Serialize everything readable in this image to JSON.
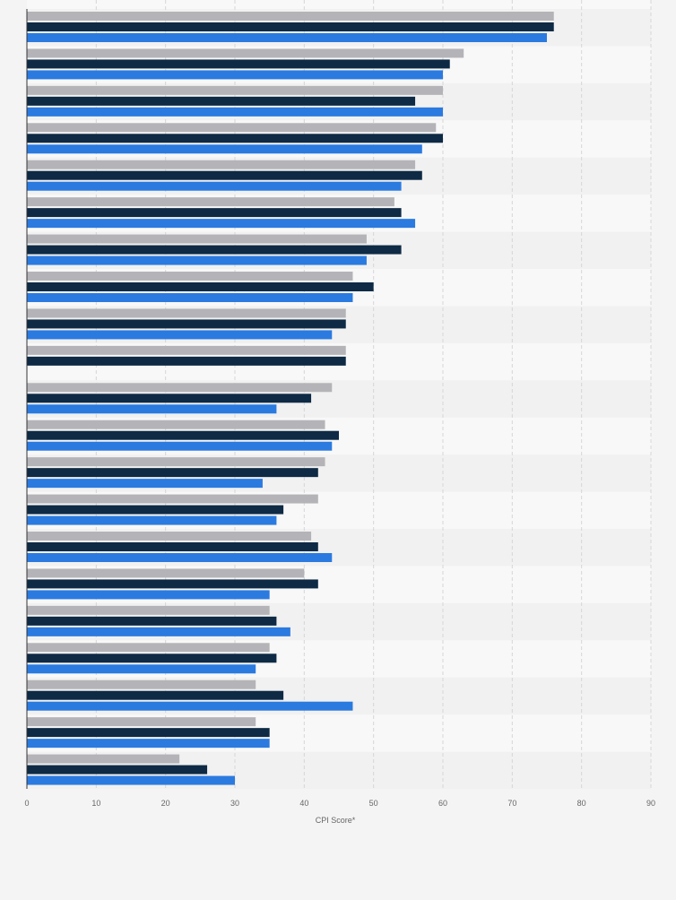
{
  "chart_data": {
    "type": "bar",
    "orientation": "horizontal",
    "xlabel": "CPI Score*",
    "xlim": [
      0,
      90
    ],
    "xticks": [
      0,
      10,
      20,
      30,
      40,
      50,
      60,
      70,
      80,
      90
    ],
    "grid": true,
    "colors": {
      "series1": "#b4b4b8",
      "series2": "#0e2a45",
      "series3": "#2b7ae0"
    },
    "groups": [
      {
        "values": [
          76,
          76,
          75
        ]
      },
      {
        "values": [
          63,
          61,
          60
        ]
      },
      {
        "values": [
          60,
          56,
          60
        ]
      },
      {
        "values": [
          59,
          60,
          57
        ]
      },
      {
        "values": [
          56,
          57,
          54
        ]
      },
      {
        "values": [
          53,
          54,
          56
        ]
      },
      {
        "values": [
          49,
          54,
          49
        ]
      },
      {
        "values": [
          47,
          50,
          47
        ]
      },
      {
        "values": [
          46,
          46,
          44
        ]
      },
      {
        "values": [
          46,
          46,
          null
        ]
      },
      {
        "values": [
          44,
          41,
          36
        ]
      },
      {
        "values": [
          43,
          45,
          44
        ]
      },
      {
        "values": [
          43,
          42,
          34
        ]
      },
      {
        "values": [
          42,
          37,
          36
        ]
      },
      {
        "values": [
          41,
          42,
          44
        ]
      },
      {
        "values": [
          40,
          42,
          35
        ]
      },
      {
        "values": [
          35,
          36,
          38
        ]
      },
      {
        "values": [
          35,
          36,
          33
        ]
      },
      {
        "values": [
          33,
          37,
          47
        ]
      },
      {
        "values": [
          33,
          35,
          35
        ]
      },
      {
        "values": [
          22,
          26,
          30
        ]
      }
    ]
  }
}
